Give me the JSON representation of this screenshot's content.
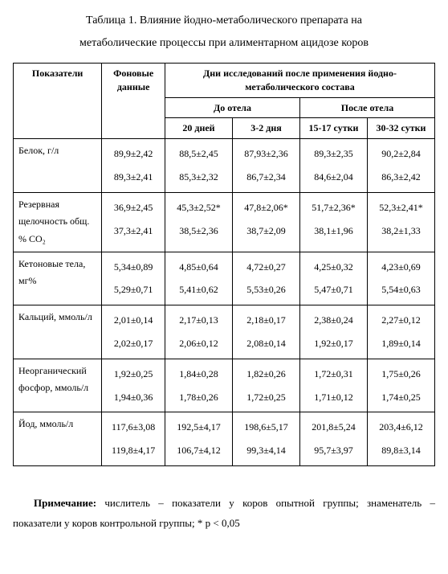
{
  "title_line1": "Таблица 1. Влияние йодно-метаболического препарата на",
  "title_line2": "метаболические процессы при алиментарном ацидозе  коров",
  "header": {
    "indicators": "Показатели",
    "baseline": "Фоновые данные",
    "days_after": "Дни исследований после применения йодно-метаболического состава",
    "before_calving": "До отела",
    "after_calving": "После отела",
    "d20": "20 дней",
    "d3_2": "3-2 дня",
    "d15_17": "15-17 сутки",
    "d30_32": "30-32 сутки"
  },
  "rows": [
    {
      "param": "Белок, г/л",
      "baseline": "89,9±2,42\n89,3±2,41",
      "d20": "88,5±2,45\n85,3±2,32",
      "d3_2": "87,93±2,36\n86,7±2,34",
      "d15_17": "89,3±2,35\n84,6±2,04",
      "d30_32": "90,2±2,84\n86,3±2,42"
    },
    {
      "param": "Резервная щелочность общ. % СО₂",
      "baseline": "36,9±2,45\n37,3±2,41",
      "d20": "45,3±2,52*\n38,5±2,36",
      "d3_2": "47,8±2,06*\n38,7±2,09",
      "d15_17": "51,7±2,36*\n38,1±1,96",
      "d30_32": "52,3±2,41*\n38,2±1,33"
    },
    {
      "param": "Кетоновые тела, мг%",
      "baseline": "5,34±0,89\n5,29±0,71",
      "d20": "4,85±0,64\n5,41±0,62",
      "d3_2": "4,72±0,27\n5,53±0,26",
      "d15_17": "4,25±0,32\n5,47±0,71",
      "d30_32": "4,23±0,69\n5,54±0,63"
    },
    {
      "param": "Кальций, ммоль/л",
      "baseline": "2,01±0,14\n2,02±0,17",
      "d20": "2,17±0,13\n2,06±0,12",
      "d3_2": "2,18±0,17\n2,08±0,14",
      "d15_17": "2,38±0,24\n1,92±0,17",
      "d30_32": "2,27±0,12\n1,89±0,14"
    },
    {
      "param": "Неорганический фосфор, ммоль/л",
      "baseline": "1,92±0,25\n1,94±0,36",
      "d20": "1,84±0,28\n1,78±0,26",
      "d3_2": "1,82±0,26\n1,72±0,25",
      "d15_17": "1,72±0,31\n1,71±0,12",
      "d30_32": "1,75±0,26\n1,74±0,25"
    },
    {
      "param": "Йод, ммоль/л",
      "baseline": "117,6±3,08\n119,8±4,17",
      "d20": "192,5±4,17\n106,7±4,12",
      "d3_2": "198,6±5,17\n99,3±4,14",
      "d15_17": "201,8±5,24\n95,7±3,97",
      "d30_32": "203,4±6,12\n89,8±3,14"
    }
  ],
  "footnote_bold": "Примечание:",
  "footnote_rest": " числитель – показатели у коров опытной группы; знаменатель – показатели  у коров контрольной группы; * р < 0,05",
  "style": {
    "font_family": "Times New Roman",
    "body_font_size_pt": 10,
    "title_font_size_pt": 11,
    "border_color": "#000000",
    "text_color": "#000000",
    "background_color": "#ffffff",
    "col_widths_pct": [
      21,
      15,
      16,
      16,
      16,
      16
    ]
  }
}
